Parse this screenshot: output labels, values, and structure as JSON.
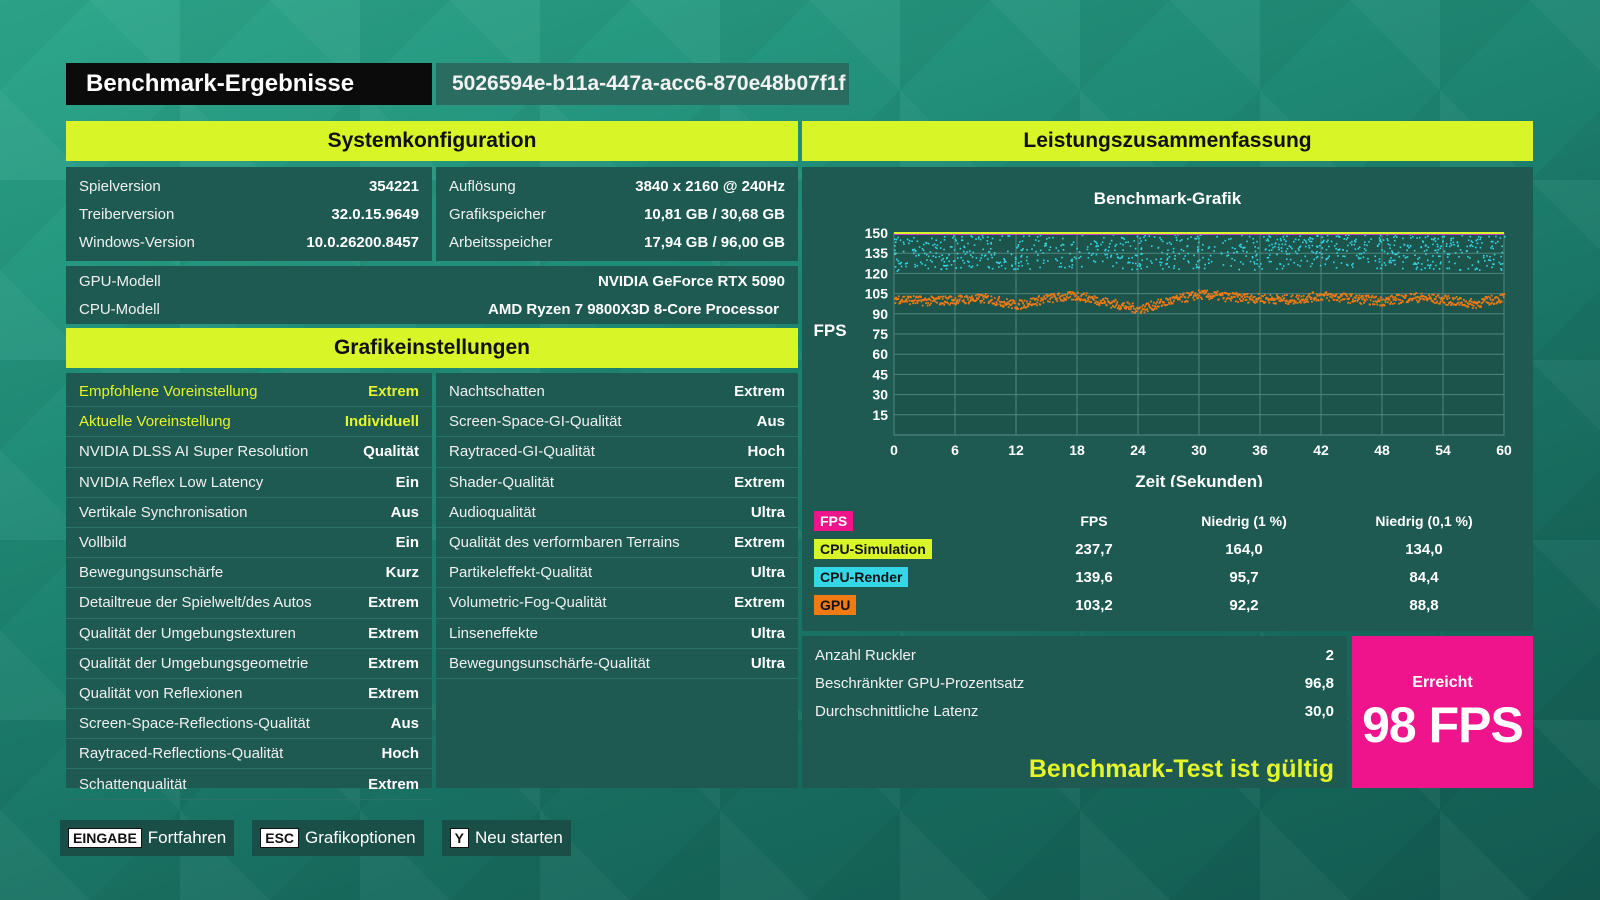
{
  "header": {
    "title": "Benchmark-Ergebnisse",
    "run_id": "5026594e-b11a-447a-acc6-870e48b07f1f"
  },
  "system": {
    "title": "Systemkonfiguration",
    "left": [
      {
        "k": "Spielversion",
        "v": "354221"
      },
      {
        "k": "Treiberversion",
        "v": "32.0.15.9649"
      },
      {
        "k": "Windows-Version",
        "v": "10.0.26200.8457"
      }
    ],
    "right": [
      {
        "k": "Auflösung",
        "v": "3840 x 2160 @ 240Hz"
      },
      {
        "k": "Grafikspeicher",
        "v": "10,81 GB / 30,68 GB"
      },
      {
        "k": "Arbeitsspeicher",
        "v": "17,94 GB / 96,00 GB"
      }
    ],
    "hw": [
      {
        "k": "GPU-Modell",
        "v": "NVIDIA GeForce RTX 5090"
      },
      {
        "k": "CPU-Modell",
        "v": "AMD Ryzen 7 9800X3D 8-Core Processor"
      }
    ]
  },
  "graphics": {
    "title": "Grafikeinstellungen",
    "left": [
      {
        "k": "Empfohlene Voreinstellung",
        "v": "Extrem"
      },
      {
        "k": "Aktuelle Voreinstellung",
        "v": "Individuell"
      },
      {
        "k": "NVIDIA DLSS AI Super Resolution",
        "v": "Qualität"
      },
      {
        "k": "NVIDIA Reflex Low Latency",
        "v": "Ein"
      },
      {
        "k": "Vertikale Synchronisation",
        "v": "Aus"
      },
      {
        "k": "Vollbild",
        "v": "Ein"
      },
      {
        "k": "Bewegungsunschärfe",
        "v": "Kurz"
      },
      {
        "k": "Detailtreue der Spielwelt/des Autos",
        "v": "Extrem"
      },
      {
        "k": "Qualität der Umgebungstexturen",
        "v": "Extrem"
      },
      {
        "k": "Qualität der Umgebungsgeometrie",
        "v": "Extrem"
      },
      {
        "k": "Qualität von Reflexionen",
        "v": "Extrem"
      },
      {
        "k": "Screen-Space-Reflections-Qualität",
        "v": "Aus"
      },
      {
        "k": "Raytraced-Reflections-Qualität",
        "v": "Hoch"
      },
      {
        "k": "Schattenqualität",
        "v": "Extrem"
      }
    ],
    "right": [
      {
        "k": "Nachtschatten",
        "v": "Extrem"
      },
      {
        "k": "Screen-Space-GI-Qualität",
        "v": "Aus"
      },
      {
        "k": "Raytraced-GI-Qualität",
        "v": "Hoch"
      },
      {
        "k": "Shader-Qualität",
        "v": "Extrem"
      },
      {
        "k": "Audioqualität",
        "v": "Ultra"
      },
      {
        "k": "Qualität des verformbaren Terrains",
        "v": "Extrem"
      },
      {
        "k": "Partikeleffekt-Qualität",
        "v": "Ultra"
      },
      {
        "k": "Volumetric-Fog-Qualität",
        "v": "Extrem"
      },
      {
        "k": "Linseneffekte",
        "v": "Ultra"
      },
      {
        "k": "Bewegungsunschärfe-Qualität",
        "v": "Ultra"
      }
    ]
  },
  "performance": {
    "title": "Leistungszusammenfassung",
    "stats_header": [
      "FPS",
      "FPS",
      "Niedrig (1 %)",
      "Niedrig (0,1 %)"
    ],
    "stats": [
      {
        "name": "CPU-Simulation",
        "color": "#d7f527",
        "fps": "237,7",
        "low1": "164,0",
        "low01": "134,0"
      },
      {
        "name": "CPU-Render",
        "color": "#35d6e6",
        "fps": "139,6",
        "low1": "95,7",
        "low01": "84,4"
      },
      {
        "name": "GPU",
        "color": "#f07a14",
        "fps": "103,2",
        "low1": "92,2",
        "low01": "88,8"
      }
    ],
    "fps_badge_color": "#f0148c",
    "extra": [
      {
        "k": "Anzahl Ruckler",
        "v": "2"
      },
      {
        "k": "Beschränkter GPU-Prozentsatz",
        "v": "96,8"
      },
      {
        "k": "Durchschnittliche Latenz",
        "v": "30,0"
      }
    ],
    "valid_text": "Benchmark-Test ist gültig",
    "achieved_label": "Erreicht",
    "achieved_value": "98 FPS",
    "achieved_color": "#f0148c"
  },
  "chart_data": {
    "type": "scatter",
    "title": "Benchmark-Grafik",
    "xlabel": "Zeit (Sekunden)",
    "ylabel": "FPS",
    "xlim": [
      0,
      60
    ],
    "ylim": [
      0,
      150
    ],
    "xticks": [
      0,
      6,
      12,
      18,
      24,
      30,
      36,
      42,
      48,
      54,
      60
    ],
    "yticks": [
      15,
      30,
      45,
      60,
      75,
      90,
      105,
      120,
      135,
      150
    ],
    "grid": true,
    "series": [
      {
        "name": "CPU-Simulation",
        "color": "#d7f527",
        "style": "capped line",
        "x": [
          0,
          60
        ],
        "y": [
          150,
          150
        ]
      },
      {
        "name": "CPU-Render",
        "color": "#35d6e6",
        "style": "scatter band",
        "x": [
          0,
          6,
          12,
          18,
          24,
          30,
          36,
          42,
          48,
          54,
          60
        ],
        "y": [
          135,
          137,
          136,
          138,
          136,
          137,
          136,
          138,
          137,
          136,
          135
        ]
      },
      {
        "name": "GPU",
        "color": "#f07a14",
        "style": "scatter line",
        "x": [
          0,
          3,
          6,
          9,
          12,
          15,
          18,
          21,
          24,
          27,
          30,
          33,
          36,
          39,
          42,
          45,
          48,
          51,
          54,
          57,
          60
        ],
        "y": [
          102,
          100,
          101,
          102,
          97,
          102,
          104,
          99,
          94,
          100,
          105,
          103,
          102,
          101,
          104,
          102,
          100,
          103,
          101,
          98,
          103
        ]
      }
    ]
  },
  "footer": [
    {
      "key": "EINGABE",
      "label": "Fortfahren"
    },
    {
      "key": "ESC",
      "label": "Grafikoptionen"
    },
    {
      "key": "Y",
      "label": "Neu starten"
    }
  ]
}
